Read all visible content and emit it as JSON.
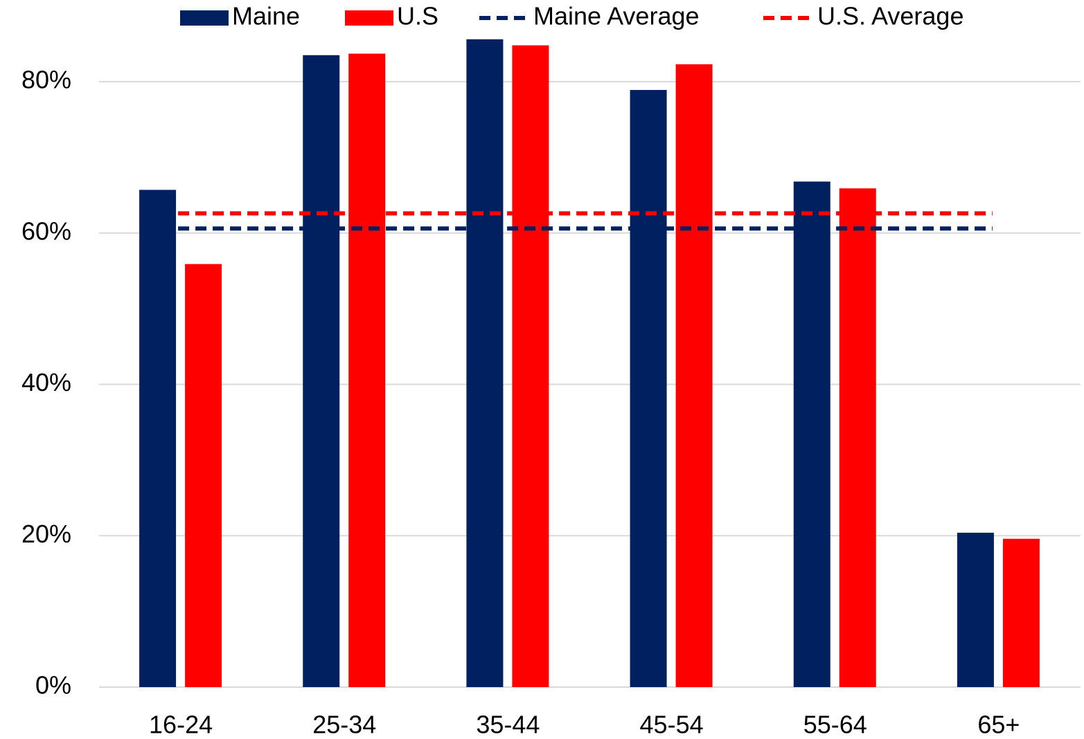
{
  "chart_data": {
    "type": "bar",
    "categories": [
      "16-24",
      "25-34",
      "35-44",
      "45-54",
      "55-64",
      "65+"
    ],
    "series": [
      {
        "name": "Maine",
        "color": "#002060",
        "values": [
          65.7,
          83.5,
          85.6,
          78.9,
          66.8,
          20.4
        ]
      },
      {
        "name": "U.S",
        "color": "#ff0000",
        "values": [
          55.9,
          83.7,
          84.8,
          82.3,
          65.9,
          19.6
        ]
      }
    ],
    "averages": [
      {
        "name": "Maine Average",
        "color": "#002060",
        "value": 60.6
      },
      {
        "name": "U.S. Average",
        "color": "#ff0000",
        "value": 62.6
      }
    ],
    "ylim": [
      0,
      86
    ],
    "yticks": [
      {
        "value": 0,
        "label": "0%"
      },
      {
        "value": 20,
        "label": "20%"
      },
      {
        "value": 40,
        "label": "40%"
      },
      {
        "value": 60,
        "label": "60%"
      },
      {
        "value": 80,
        "label": "80%"
      }
    ],
    "grid": true,
    "legend": "top"
  }
}
